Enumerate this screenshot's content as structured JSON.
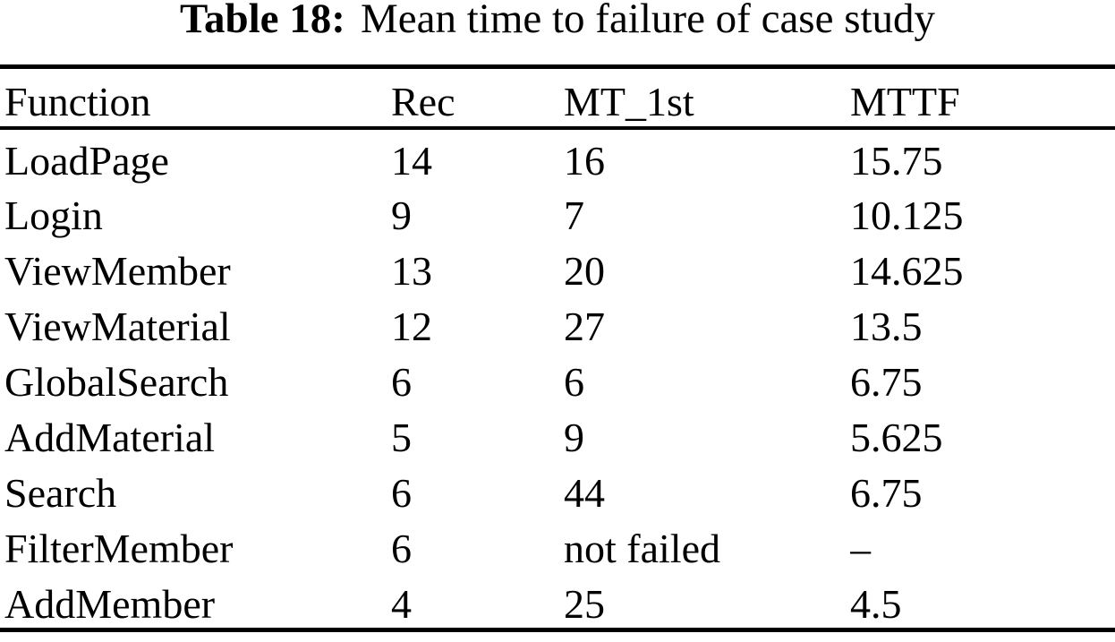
{
  "caption": {
    "label": "Table 18:",
    "text": "Mean time to failure of case study"
  },
  "table": {
    "columns": [
      "Function",
      "Rec",
      "MT_1st",
      "MTTF"
    ],
    "rows": [
      {
        "function": "LoadPage",
        "rec": "14",
        "mt_1st": "16",
        "mttf": "15.75"
      },
      {
        "function": "Login",
        "rec": "9",
        "mt_1st": "7",
        "mttf": "10.125"
      },
      {
        "function": "ViewMember",
        "rec": "13",
        "mt_1st": "20",
        "mttf": "14.625"
      },
      {
        "function": "ViewMaterial",
        "rec": "12",
        "mt_1st": "27",
        "mttf": "13.5"
      },
      {
        "function": "GlobalSearch",
        "rec": "6",
        "mt_1st": "6",
        "mttf": "6.75"
      },
      {
        "function": "AddMaterial",
        "rec": "5",
        "mt_1st": "9",
        "mttf": "5.625"
      },
      {
        "function": "Search",
        "rec": "6",
        "mt_1st": "44",
        "mttf": "6.75"
      },
      {
        "function": "FilterMember",
        "rec": "6",
        "mt_1st": "not failed",
        "mttf": "–"
      },
      {
        "function": "AddMember",
        "rec": "4",
        "mt_1st": "25",
        "mttf": "4.5"
      }
    ]
  },
  "chart_data": {
    "type": "table",
    "title": "Table 18: Mean time to failure of case study",
    "columns": [
      "Function",
      "Rec",
      "MT_1st",
      "MTTF"
    ],
    "rows": [
      [
        "LoadPage",
        14,
        16,
        15.75
      ],
      [
        "Login",
        9,
        7,
        10.125
      ],
      [
        "ViewMember",
        13,
        20,
        14.625
      ],
      [
        "ViewMaterial",
        12,
        27,
        13.5
      ],
      [
        "GlobalSearch",
        6,
        6,
        6.75
      ],
      [
        "AddMaterial",
        5,
        9,
        5.625
      ],
      [
        "Search",
        6,
        44,
        6.75
      ],
      [
        "FilterMember",
        6,
        "not failed",
        "–"
      ],
      [
        "AddMember",
        4,
        25,
        4.5
      ]
    ]
  },
  "colors": {
    "background": "#ffffff",
    "text": "#000000",
    "rule": "#000000"
  }
}
